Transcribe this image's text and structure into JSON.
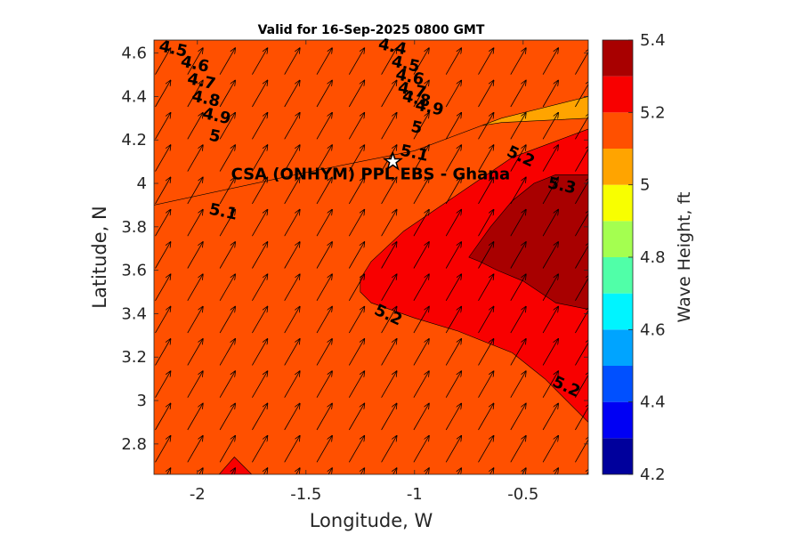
{
  "chart_data": {
    "type": "heatmap",
    "title": "Valid for 16-Sep-2025 0800 GMT",
    "xlabel": "Longitude, W",
    "ylabel": "Latitude, N",
    "xlim": [
      -2.2,
      -0.2
    ],
    "ylim": [
      2.66,
      4.66
    ],
    "xticks": [
      -2,
      -1.5,
      -1,
      -0.5
    ],
    "xtick_labels": [
      "-2",
      "-1.5",
      "-1",
      "-0.5"
    ],
    "yticks": [
      2.8,
      3,
      3.2,
      3.4,
      3.6,
      3.8,
      4,
      4.2,
      4.4,
      4.6
    ],
    "ytick_labels": [
      "2.8",
      "3",
      "3.2",
      "3.4",
      "3.6",
      "3.8",
      "4",
      "4.2",
      "4.4",
      "4.6"
    ],
    "colorbar": {
      "label": "Wave Height, ft",
      "range": [
        4.2,
        5.4
      ],
      "ticks": [
        4.2,
        4.4,
        4.6,
        4.8,
        5,
        5.2,
        5.4
      ],
      "tick_labels": [
        "4.2",
        "4.4",
        "4.6",
        "4.8",
        "5",
        "5.2",
        "5.4"
      ],
      "levels": [
        4.2,
        4.3,
        4.4,
        4.5,
        4.6,
        4.7,
        4.8,
        4.9,
        5.0,
        5.1,
        5.2,
        5.3,
        5.4
      ],
      "colors": [
        "#00009c",
        "#0000f4",
        "#0050ff",
        "#00a4ff",
        "#00f4ff",
        "#50ffa8",
        "#a4ff50",
        "#f8ff00",
        "#ffa400",
        "#ff5000",
        "#f80000",
        "#a80000"
      ]
    },
    "contour_labels": [
      {
        "text": "4.5",
        "lon": -2.18,
        "lat": 4.61
      },
      {
        "text": "4.6",
        "lon": -2.08,
        "lat": 4.54
      },
      {
        "text": "4.7",
        "lon": -2.05,
        "lat": 4.46
      },
      {
        "text": "4.8",
        "lon": -2.03,
        "lat": 4.38
      },
      {
        "text": "4.9",
        "lon": -1.98,
        "lat": 4.3
      },
      {
        "text": "5",
        "lon": -1.95,
        "lat": 4.2
      },
      {
        "text": "5.1",
        "lon": -1.95,
        "lat": 3.86
      },
      {
        "text": "4.4",
        "lon": -1.17,
        "lat": 4.62
      },
      {
        "text": "4.5",
        "lon": -1.11,
        "lat": 4.54
      },
      {
        "text": "4.6",
        "lon": -1.09,
        "lat": 4.48
      },
      {
        "text": "4.7",
        "lon": -1.08,
        "lat": 4.42
      },
      {
        "text": "4.8",
        "lon": -1.06,
        "lat": 4.38
      },
      {
        "text": "4.9",
        "lon": -1.0,
        "lat": 4.34
      },
      {
        "text": "5",
        "lon": -1.02,
        "lat": 4.24
      },
      {
        "text": "5.1",
        "lon": -1.07,
        "lat": 4.13
      },
      {
        "text": "5.2",
        "lon": -0.58,
        "lat": 4.13
      },
      {
        "text": "5.3",
        "lon": -0.39,
        "lat": 3.98
      },
      {
        "text": "5.2",
        "lon": -1.19,
        "lat": 3.4
      },
      {
        "text": "5.2",
        "lon": -0.37,
        "lat": 3.07
      }
    ],
    "site": {
      "label": "CSA (ONHYM) PPL EBS  - Ghana",
      "lon": -1.1,
      "lat": 4.1,
      "marker": "star"
    },
    "wave_direction_deg_math": 60,
    "color_zones": [
      {
        "level_floor": 5.0,
        "lon": [
          -2.2,
          -0.2,
          -0.2,
          -0.6,
          -1.0,
          -1.5,
          -1.8,
          -2.2
        ],
        "lat": [
          4.66,
          4.66,
          4.3,
          4.28,
          4.22,
          4.2,
          4.14,
          4.14
        ]
      },
      {
        "level_floor": 4.9,
        "lon": [
          -2.2,
          -0.2,
          -0.2,
          -0.6,
          -1.0,
          -1.5,
          -1.8,
          -2.2
        ],
        "lat": [
          4.66,
          4.66,
          4.4,
          4.38,
          4.3,
          4.29,
          4.3,
          4.27
        ]
      },
      {
        "level_floor": 4.8,
        "lon": [
          -2.2,
          -0.2,
          -0.2,
          -0.6,
          -1.0,
          -1.5,
          -1.8,
          -2.2
        ],
        "lat": [
          4.66,
          4.66,
          4.51,
          4.46,
          4.38,
          4.37,
          4.38,
          4.35
        ]
      },
      {
        "level_floor": 4.7,
        "lon": [
          -2.2,
          -0.2,
          -0.2,
          -0.6,
          -1.0,
          -1.5,
          -1.8,
          -2.2
        ],
        "lat": [
          4.66,
          4.66,
          4.57,
          4.52,
          4.43,
          4.45,
          4.45,
          4.42
        ]
      },
      {
        "level_floor": 4.6,
        "lon": [
          -2.2,
          -0.2,
          -0.2,
          -0.6,
          -1.0,
          -1.5,
          -1.8,
          -2.2
        ],
        "lat": [
          4.66,
          4.66,
          4.62,
          4.57,
          4.48,
          4.5,
          4.51,
          4.49
        ]
      },
      {
        "level_floor": 4.5,
        "lon": [
          -2.2,
          -0.2,
          -0.6,
          -1.0,
          -1.5,
          -1.8,
          -2.2
        ],
        "lat": [
          4.66,
          4.66,
          4.62,
          4.53,
          4.55,
          4.57,
          4.56
        ]
      },
      {
        "level_floor": 4.4,
        "lon": [
          -2.2,
          -0.75,
          -1.0,
          -1.3,
          -1.6,
          -2.0,
          -2.2
        ],
        "lat": [
          4.66,
          4.66,
          4.57,
          4.6,
          4.62,
          4.63,
          4.63
        ]
      },
      {
        "level_floor": 4.3,
        "lon": [
          -1.35,
          -0.85,
          -1.0,
          -1.2
        ],
        "lat": [
          4.66,
          4.66,
          4.62,
          4.64
        ]
      },
      {
        "level_floor": 5.1,
        "lon": [
          -2.2,
          -0.2,
          -0.2,
          -0.6,
          -1.0,
          -1.5,
          -2.2
        ],
        "lat": [
          4.66,
          4.66,
          4.4,
          4.3,
          4.15,
          4.05,
          3.9
        ]
      },
      {
        "level_floor": 5.2,
        "lon": [
          -1.25,
          -1.2,
          -1.05,
          -0.8,
          -0.55,
          -0.2,
          -0.2,
          -0.4,
          -0.55,
          -0.8,
          -1.0,
          -1.2,
          -1.25
        ],
        "lat": [
          3.56,
          3.64,
          3.78,
          3.95,
          4.12,
          4.25,
          2.9,
          3.1,
          3.22,
          3.32,
          3.38,
          3.45,
          3.5
        ]
      },
      {
        "level_floor": 5.2,
        "lon": [
          -1.9,
          -1.83,
          -1.75,
          -1.95
        ],
        "lat": [
          2.66,
          2.74,
          2.66,
          2.66
        ]
      },
      {
        "level_floor": 5.3,
        "lon": [
          -0.75,
          -0.65,
          -0.55,
          -0.45,
          -0.35,
          -0.2,
          -0.2,
          -0.35,
          -0.5,
          -0.62,
          -0.7
        ],
        "lat": [
          3.66,
          3.8,
          3.92,
          4.0,
          4.04,
          4.04,
          3.42,
          3.45,
          3.55,
          3.6,
          3.64
        ]
      }
    ]
  }
}
